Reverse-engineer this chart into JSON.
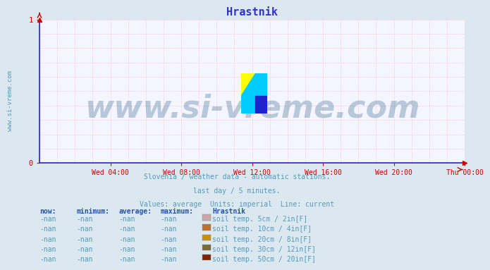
{
  "title": "Hrastnik",
  "title_color": "#3333cc",
  "title_fontsize": 11,
  "bg_color": "#dce8f0",
  "plot_bg_color": "#f5f5ff",
  "axis_color": "#3333cc",
  "tick_color": "#cc0000",
  "text_color": "#5599bb",
  "header_color": "#2255aa",
  "xlim": [
    0,
    288
  ],
  "ylim": [
    0,
    1
  ],
  "yticks": [
    0,
    1
  ],
  "xtick_labels": [
    "Wed 04:00",
    "Wed 08:00",
    "Wed 12:00",
    "Wed 16:00",
    "Wed 20:00",
    "Thu 00:00"
  ],
  "xtick_positions": [
    48,
    96,
    144,
    192,
    240,
    288
  ],
  "subtitle_lines": [
    "Slovenia / weather data - automatic stations.",
    "last day / 5 minutes.",
    "Values: average  Units: imperial  Line: current"
  ],
  "watermark_text": "www.si-vreme.com",
  "watermark_color": "#1a5580",
  "watermark_alpha": 0.28,
  "watermark_fontsize": 32,
  "legend_header": [
    "now:",
    "minimum:",
    "average:",
    "maximum:",
    "Hrastnik"
  ],
  "legend_colors": [
    "#c8a8a8",
    "#b87333",
    "#c89010",
    "#7a6a3a",
    "#7a2800"
  ],
  "legend_labels": [
    "soil temp. 5cm / 2in[F]",
    "soil temp. 10cm / 4in[F]",
    "soil temp. 20cm / 8in[F]",
    "soil temp. 30cm / 12in[F]",
    "soil temp. 50cm / 20in[F]"
  ],
  "sidebar_text": "www.si-vreme.com",
  "sidebar_color": "#5599bb",
  "sidebar_fontsize": 6.5
}
